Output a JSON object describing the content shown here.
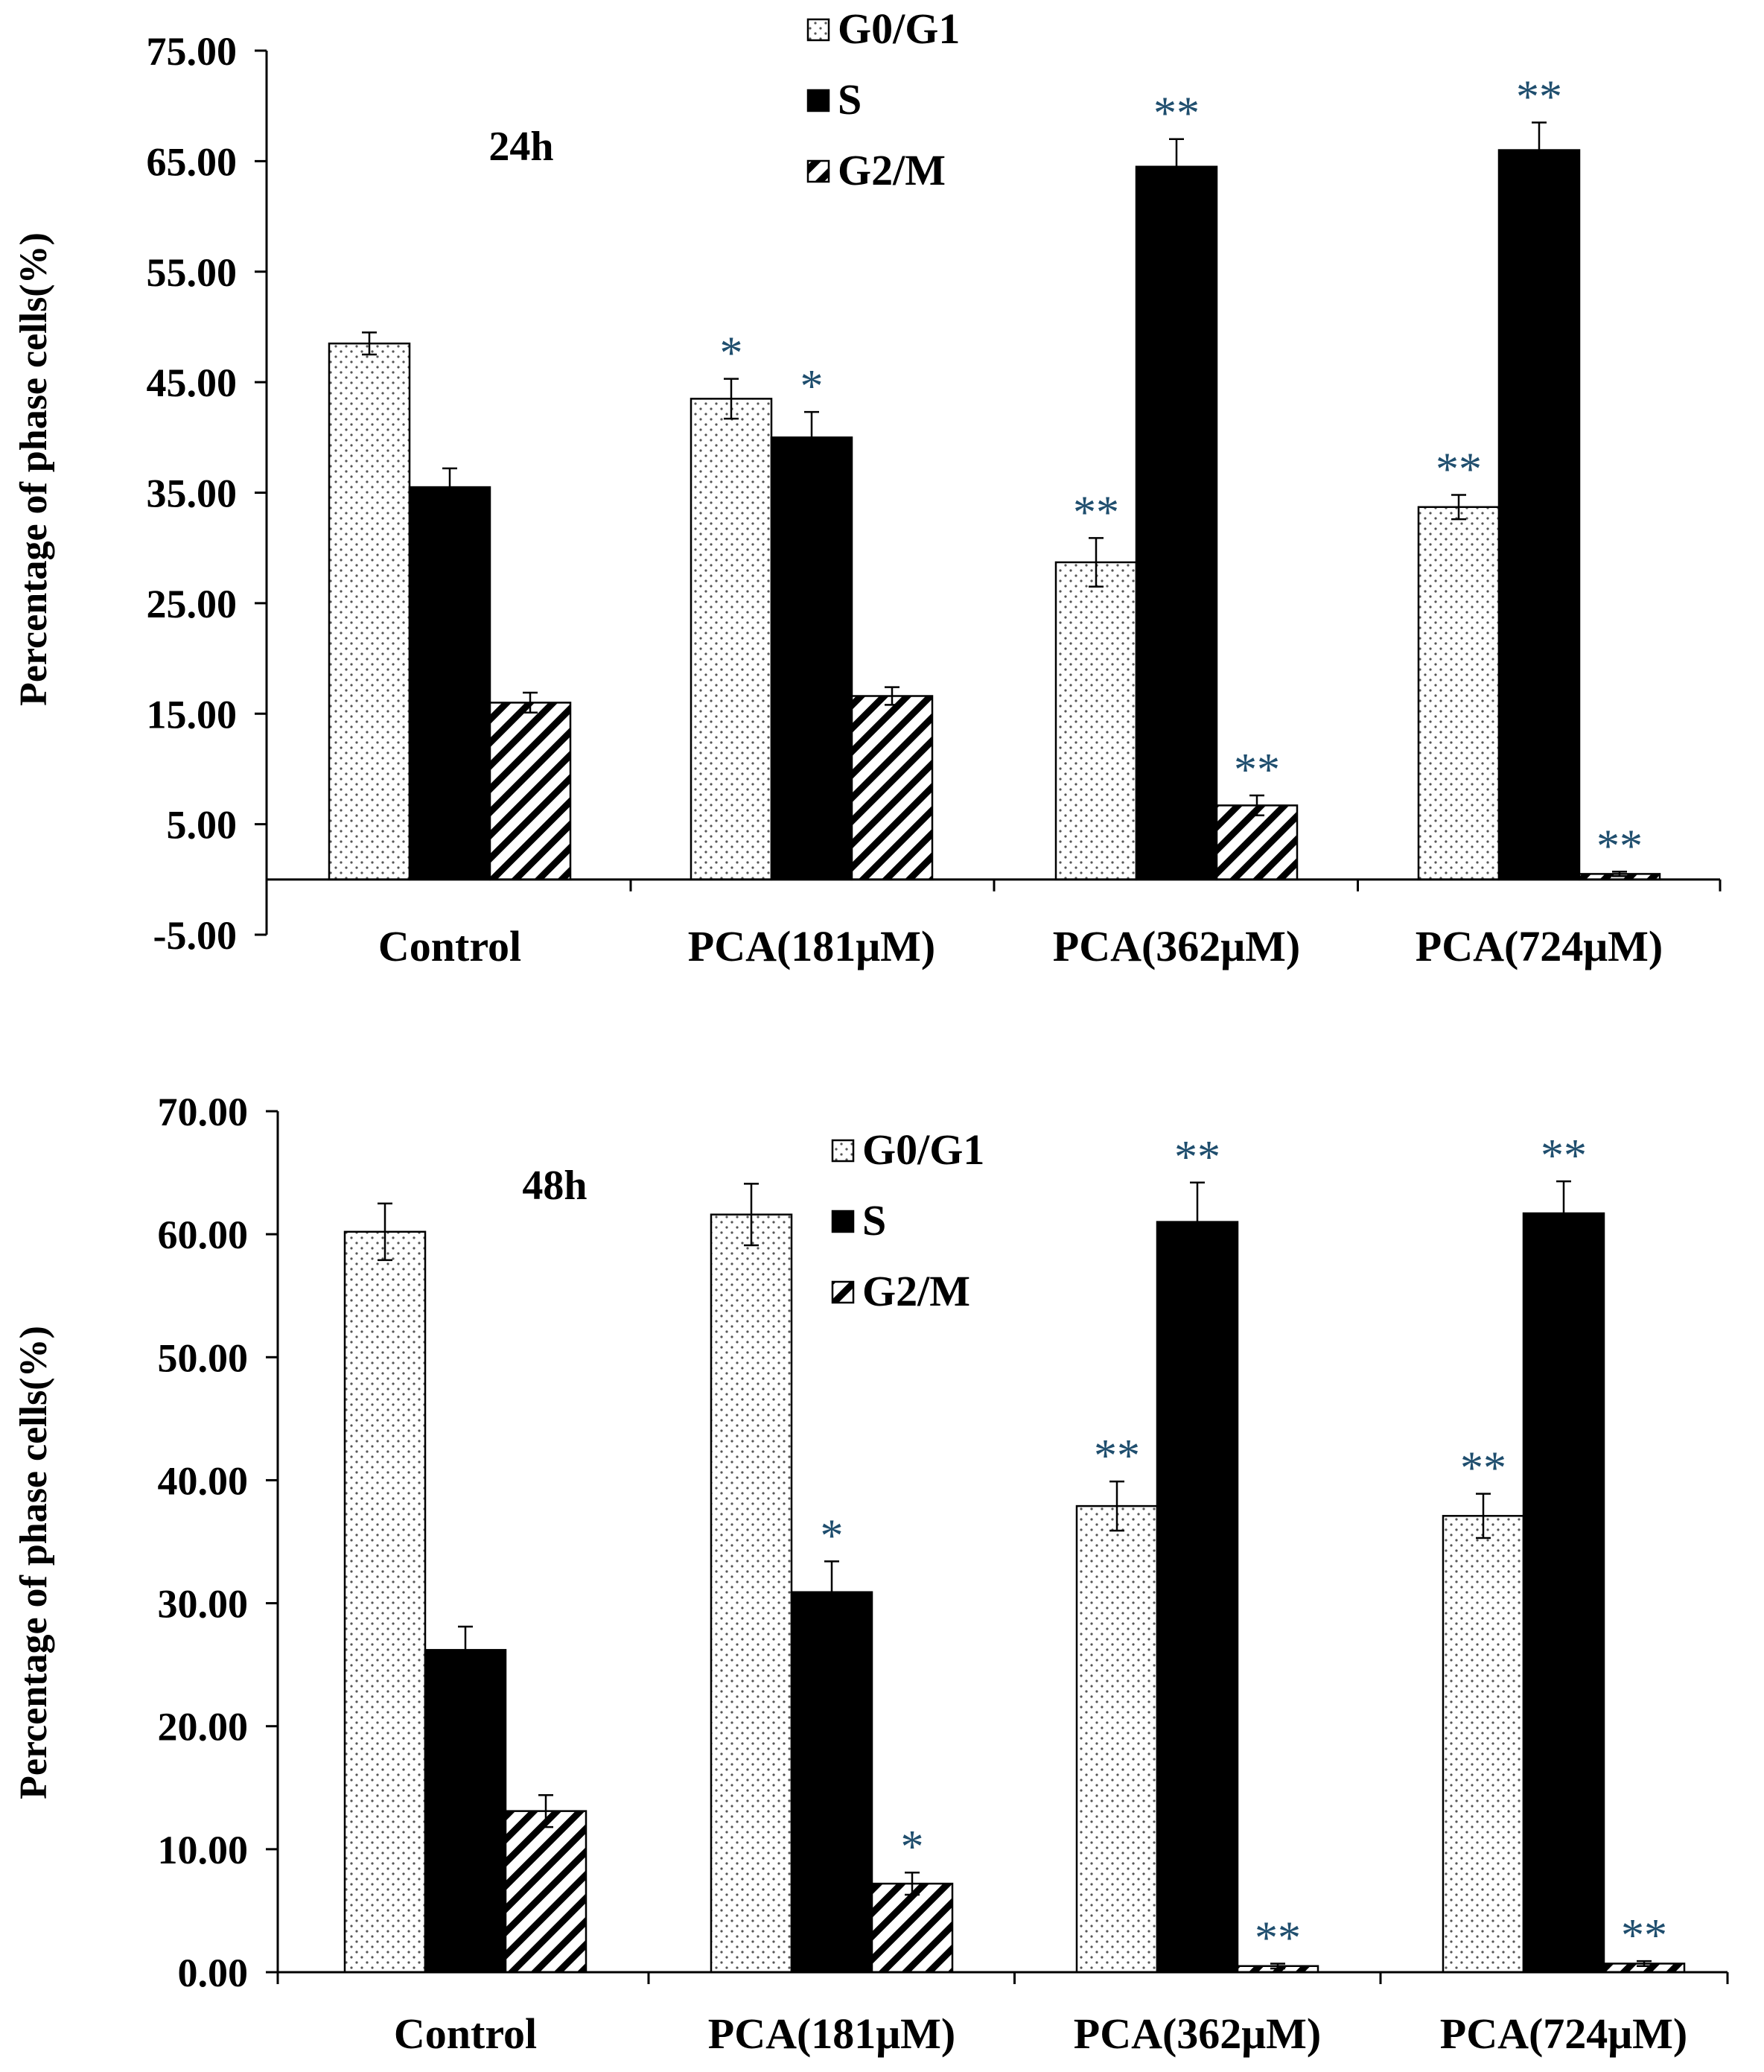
{
  "chart_data": [
    {
      "type": "bar",
      "title": "24h",
      "xlabel": "",
      "ylabel": "Percentage of phase cells(%)",
      "ylim": [
        -5,
        75
      ],
      "yticks": [
        -5,
        5,
        15,
        25,
        35,
        45,
        55,
        65,
        75
      ],
      "yticklabels": [
        "-5.00",
        "5.00",
        "15.00",
        "25.00",
        "35.00",
        "45.00",
        "55.00",
        "65.00",
        "75.00"
      ],
      "categories": [
        "Control",
        "PCA(181μM)",
        "PCA(362μM)",
        "PCA(724μM)"
      ],
      "legend_position": "top-center",
      "series": [
        {
          "name": "G0/G1",
          "pattern": "dots",
          "values": [
            48.5,
            43.5,
            28.7,
            33.7
          ],
          "errors": [
            1.0,
            1.8,
            2.2,
            1.1
          ],
          "significance": [
            "",
            "*",
            "**",
            "**"
          ]
        },
        {
          "name": "S",
          "pattern": "solid",
          "values": [
            35.5,
            40.0,
            64.5,
            66.0
          ],
          "errors": [
            1.7,
            2.3,
            2.5,
            2.5
          ],
          "significance": [
            "",
            "*",
            "**",
            "**"
          ]
        },
        {
          "name": "G2/M",
          "pattern": "hatch",
          "values": [
            16.0,
            16.6,
            6.7,
            0.5
          ],
          "errors": [
            0.9,
            0.8,
            0.9,
            0.2
          ],
          "significance": [
            "",
            "",
            "**",
            "**"
          ]
        }
      ]
    },
    {
      "type": "bar",
      "title": "48h",
      "xlabel": "",
      "ylabel": "Percentage of phase cells(%)",
      "ylim": [
        0,
        70
      ],
      "yticks": [
        0,
        10,
        20,
        30,
        40,
        50,
        60,
        70
      ],
      "yticklabels": [
        "0.00",
        "10.00",
        "20.00",
        "30.00",
        "40.00",
        "50.00",
        "60.00",
        "70.00"
      ],
      "categories": [
        "Control",
        "PCA(181μM)",
        "PCA(362μM)",
        "PCA(724μM)"
      ],
      "legend_position": "top-center",
      "series": [
        {
          "name": "G0/G1",
          "pattern": "dots",
          "values": [
            60.2,
            61.6,
            37.9,
            37.1
          ],
          "errors": [
            2.3,
            2.5,
            2.0,
            1.8
          ],
          "significance": [
            "",
            "",
            "**",
            "**"
          ]
        },
        {
          "name": "S",
          "pattern": "solid",
          "values": [
            26.2,
            30.9,
            61.0,
            61.7
          ],
          "errors": [
            1.9,
            2.5,
            3.2,
            2.6
          ],
          "significance": [
            "",
            "*",
            "**",
            "**"
          ]
        },
        {
          "name": "G2/M",
          "pattern": "hatch",
          "values": [
            13.1,
            7.2,
            0.5,
            0.7
          ],
          "errors": [
            1.3,
            0.9,
            0.2,
            0.2
          ],
          "significance": [
            "",
            "*",
            "**",
            "**"
          ]
        }
      ]
    }
  ]
}
